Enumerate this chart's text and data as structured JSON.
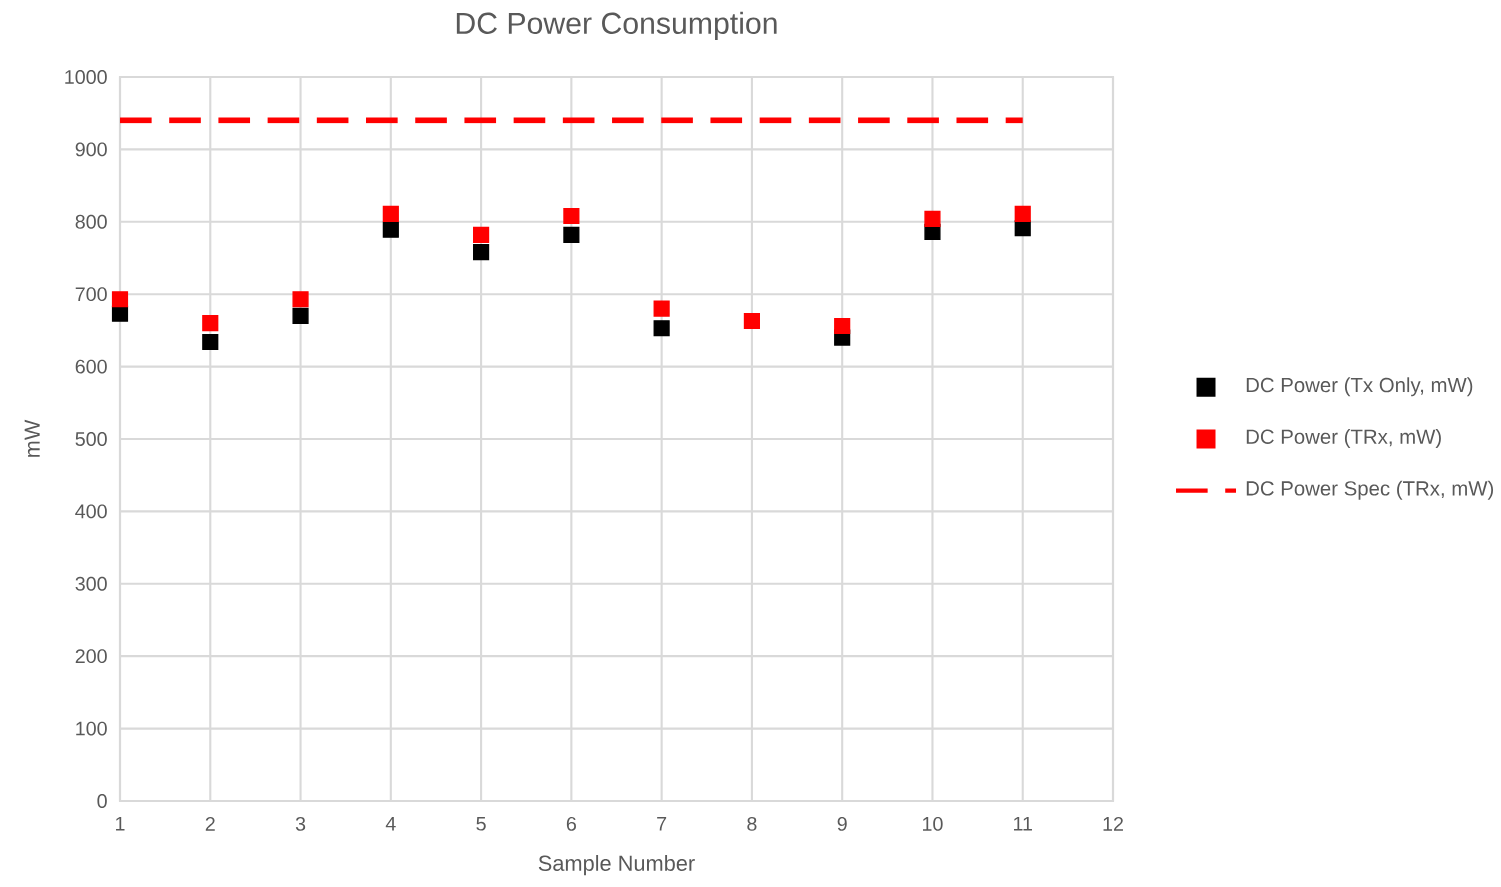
{
  "chart_data": {
    "type": "scatter",
    "title": "DC Power Consumption",
    "xlabel": "Sample Number",
    "ylabel": "mW",
    "x": [
      1,
      2,
      3,
      4,
      5,
      6,
      7,
      8,
      9,
      10,
      11
    ],
    "series": [
      {
        "name": "DC Power (Tx Only, mW)",
        "color": "#000000",
        "values": [
          673,
          634,
          670,
          789,
          758,
          782,
          653,
          null,
          640,
          786,
          791
        ]
      },
      {
        "name": "DC Power (TRx, mW)",
        "color": "#ff0000",
        "values": [
          693,
          660,
          693,
          811,
          782,
          808,
          680,
          663,
          656,
          804,
          811
        ]
      },
      {
        "name": "DC Power Spec (TRx, mW)",
        "color": "#ff0000",
        "type": "line",
        "line_style": "dashed",
        "marker": "none",
        "x": [
          1,
          11
        ],
        "values": [
          940,
          940
        ]
      }
    ],
    "xlim": [
      1,
      12
    ],
    "ylim": [
      0,
      1000
    ],
    "xticks": [
      1,
      2,
      3,
      4,
      5,
      6,
      7,
      8,
      9,
      10,
      11,
      12
    ],
    "yticks": [
      0,
      100,
      200,
      300,
      400,
      500,
      600,
      700,
      800,
      900,
      1000
    ],
    "grid": true,
    "legend": "right",
    "marker": "square"
  }
}
